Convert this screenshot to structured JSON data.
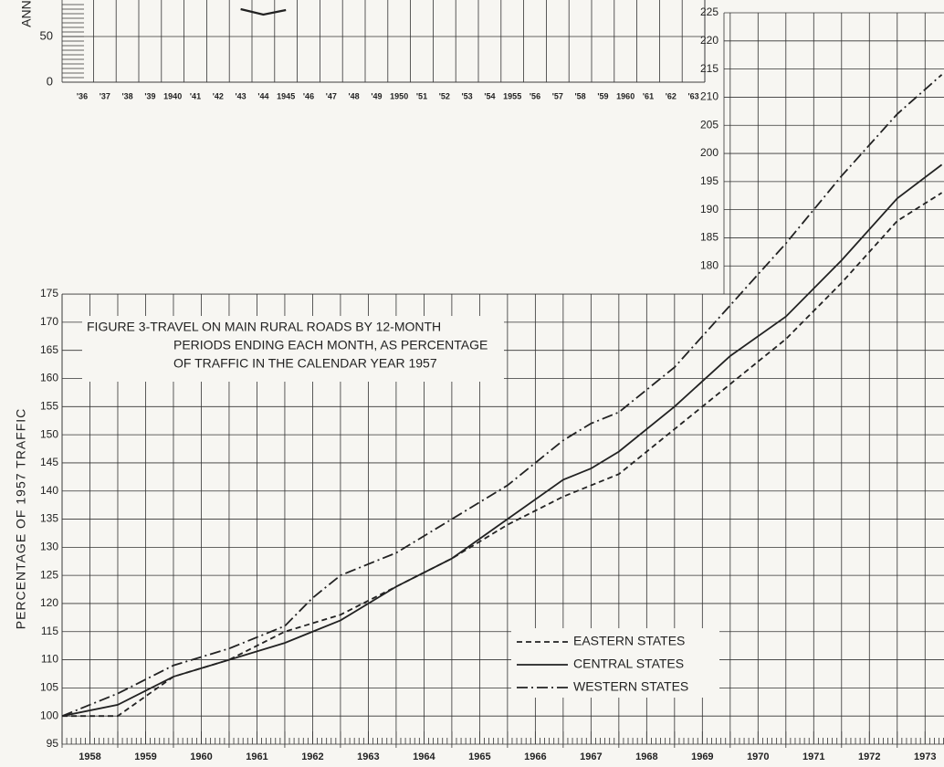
{
  "chart_data": [
    {
      "type": "line",
      "y_label": "ANNU",
      "categories": [
        "'36",
        "'37",
        "'38",
        "'39",
        "1940",
        "'41",
        "'42",
        "'43",
        "'44",
        "1945",
        "'46",
        "'47",
        "'48",
        "'49",
        "1950",
        "'51",
        "'52",
        "'53",
        "'54",
        "1955",
        "'56",
        "'57",
        "'58",
        "'59",
        "1960",
        "'61",
        "'62",
        "'63"
      ],
      "series": [
        {
          "name": null,
          "color": "#222222",
          "values": [
            null,
            null,
            null,
            null,
            null,
            null,
            null,
            80,
            74,
            79,
            null,
            null,
            null,
            null,
            null,
            null,
            null,
            null,
            null,
            null,
            null,
            null,
            null,
            null,
            null,
            null,
            null,
            null
          ]
        }
      ],
      "ylim": [
        0,
        90
      ],
      "yticks": [
        0,
        50
      ],
      "grid": true
    },
    {
      "type": "line",
      "title": [
        "FIGURE 3-TRAVEL ON MAIN RURAL ROADS BY 12-MONTH",
        "PERIODS ENDING EACH MONTH, AS PERCENTAGE",
        "OF TRAFFIC IN THE CALENDAR YEAR 1957"
      ],
      "y_label": "PERCENTAGE OF 1957 TRAFFIC",
      "x": [
        1958,
        1959,
        1960,
        1961,
        1962,
        1962.5,
        1963,
        1964,
        1965,
        1966,
        1967,
        1967.5,
        1968,
        1969,
        1970,
        1971,
        1972,
        1973,
        1973.8
      ],
      "series": [
        {
          "name": "EASTERN STATES",
          "color": "#222222",
          "dash": "6,4",
          "values": [
            100,
            100,
            107,
            110,
            115,
            116.5,
            118,
            123,
            128,
            134,
            139,
            141,
            143,
            151,
            159,
            167,
            177,
            188,
            193
          ]
        },
        {
          "name": "CENTRAL STATES",
          "color": "#222222",
          "dash": "none",
          "values": [
            100,
            102,
            107,
            110,
            113,
            115,
            117,
            123,
            128,
            135,
            142,
            144,
            147,
            155,
            164,
            171,
            181,
            192,
            198
          ]
        },
        {
          "name": "WESTERN STATES",
          "color": "#222222",
          "dash": "12,4,2,4",
          "values": [
            100,
            104,
            109,
            112,
            116,
            121,
            125,
            129,
            135,
            141,
            149,
            152,
            154,
            162,
            173,
            184,
            196,
            207,
            214
          ]
        }
      ],
      "xlim": [
        1958,
        1973.84
      ],
      "xticks": [
        1958,
        1959,
        1960,
        1961,
        1962,
        1963,
        1964,
        1965,
        1966,
        1967,
        1968,
        1969,
        1970,
        1971,
        1972,
        1973
      ],
      "ylim": [
        95,
        225
      ],
      "yticks": [
        95,
        100,
        105,
        110,
        115,
        120,
        125,
        130,
        135,
        140,
        145,
        150,
        155,
        160,
        165,
        170,
        175,
        180,
        185,
        190,
        195,
        200,
        205,
        210,
        215,
        220,
        225
      ],
      "grid": true,
      "legend": "lower right"
    }
  ]
}
